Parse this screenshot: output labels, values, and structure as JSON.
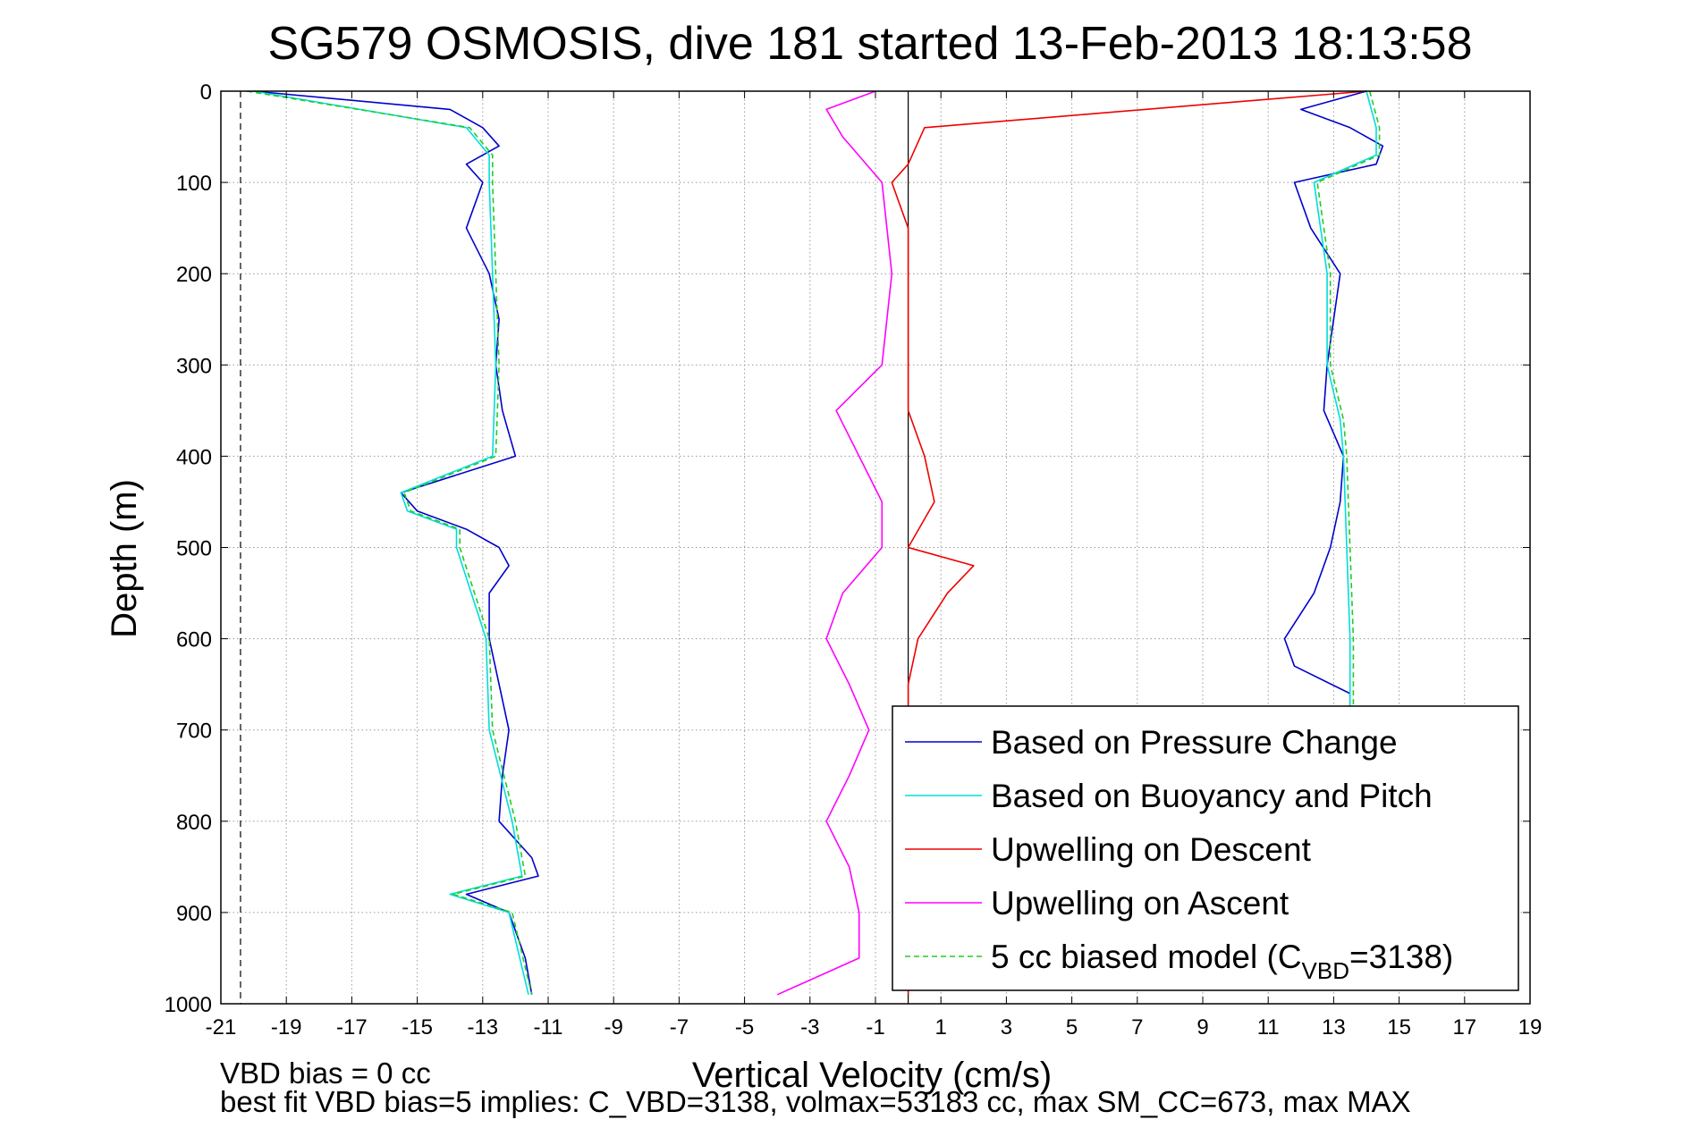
{
  "chart_data": {
    "type": "line",
    "title": "SG579 OSMOSIS, dive 181 started 13-Feb-2013 18:13:58",
    "xlabel": "Vertical Velocity (cm/s)",
    "ylabel": "Depth (m)",
    "xlim": [
      -21,
      19
    ],
    "ylim": [
      1000,
      0
    ],
    "y_reversed": true,
    "x_ticks": [
      -21,
      -19,
      -17,
      -15,
      -13,
      -11,
      -9,
      -7,
      -5,
      -3,
      -1,
      1,
      3,
      5,
      7,
      9,
      11,
      13,
      15,
      17,
      19
    ],
    "y_ticks": [
      0,
      100,
      200,
      300,
      400,
      500,
      600,
      700,
      800,
      900,
      1000
    ],
    "grid": true,
    "reference_lines": [
      {
        "x": 0,
        "style": "solid",
        "color": "#000000"
      },
      {
        "x": -20.4,
        "style": "dashed",
        "color": "#000000"
      }
    ],
    "series": [
      {
        "name": "Based on Pressure Change",
        "color": "#0000cc",
        "style": "solid",
        "profiles": [
          {
            "depth": [
              0,
              20,
              40,
              60,
              80,
              100,
              150,
              200,
              250,
              300,
              350,
              400,
              440,
              460,
              480,
              500,
              520,
              550,
              600,
              650,
              700,
              750,
              800,
              840,
              860,
              880,
              900,
              950,
              990
            ],
            "velocity": [
              -20,
              -14,
              -13,
              -12.5,
              -13.5,
              -13,
              -13.5,
              -12.8,
              -12.5,
              -12.6,
              -12.4,
              -12,
              -15.5,
              -15,
              -13.5,
              -12.5,
              -12.2,
              -12.8,
              -12.8,
              -12.5,
              -12.2,
              -12.4,
              -12.5,
              -11.5,
              -11.3,
              -13.5,
              -12.2,
              -11.7,
              -11.5
            ]
          },
          {
            "depth": [
              0,
              20,
              40,
              60,
              80,
              100,
              150,
              200,
              250,
              300,
              350,
              400,
              450,
              500,
              550,
              600,
              630,
              660,
              700
            ],
            "velocity": [
              14,
              12,
              13.5,
              14.5,
              14.3,
              11.8,
              12.3,
              13.2,
              13,
              12.8,
              12.7,
              13.3,
              13.2,
              12.9,
              12.4,
              11.5,
              11.8,
              13.5,
              13.5
            ]
          }
        ]
      },
      {
        "name": "Based on Buoyancy and Pitch",
        "color": "#00dddd",
        "style": "solid",
        "profiles": [
          {
            "depth": [
              0,
              40,
              70,
              100,
              200,
              300,
              400,
              440,
              460,
              480,
              500,
              600,
              700,
              800,
              860,
              880,
              900,
              990
            ],
            "velocity": [
              -20,
              -13.5,
              -12.8,
              -12.8,
              -12.7,
              -12.6,
              -12.7,
              -15.5,
              -15.3,
              -13.8,
              -13.8,
              -12.9,
              -12.8,
              -12.1,
              -11.8,
              -14,
              -12.2,
              -11.6
            ]
          },
          {
            "depth": [
              0,
              40,
              70,
              100,
              200,
              300,
              360,
              400,
              500,
              600,
              700
            ],
            "velocity": [
              14,
              14.3,
              14.3,
              12.4,
              12.8,
              12.8,
              13.2,
              13.3,
              13.4,
              13.5,
              13.5
            ]
          }
        ]
      },
      {
        "name": "Upwelling on Descent",
        "color": "#ee0000",
        "style": "solid",
        "profiles": [
          {
            "depth": [
              0,
              40,
              80,
              100,
              150,
              200,
              250,
              300,
              350,
              400,
              450,
              500,
              520,
              550,
              600,
              650,
              700,
              750,
              800,
              850,
              900,
              950,
              990
            ],
            "velocity": [
              14,
              0.5,
              0,
              -0.5,
              0,
              0,
              0,
              0,
              0,
              0.5,
              0.8,
              0,
              2,
              1.2,
              0.3,
              0,
              0,
              0,
              -0.2,
              0,
              0,
              0,
              0
            ]
          }
        ]
      },
      {
        "name": "Upwelling on Ascent",
        "color": "#ff00ff",
        "style": "solid",
        "profiles": [
          {
            "depth": [
              0,
              20,
              50,
              100,
              200,
              300,
              350,
              400,
              450,
              500,
              550,
              600,
              650,
              700,
              750,
              800,
              850,
              900,
              950,
              990
            ],
            "velocity": [
              -1,
              -2.5,
              -2,
              -0.8,
              -0.5,
              -0.8,
              -2.2,
              -1.5,
              -0.8,
              -0.8,
              -2,
              -2.5,
              -1.8,
              -1.2,
              -1.8,
              -2.5,
              -1.8,
              -1.5,
              -1.5,
              -4
            ]
          }
        ]
      },
      {
        "name": "5 cc biased model (C_VBD=3138)",
        "color": "#22cc22",
        "style": "dashed",
        "profiles": [
          {
            "depth": [
              0,
              40,
              70,
              100,
              200,
              300,
              400,
              440,
              460,
              480,
              500,
              600,
              700,
              800,
              860,
              880,
              900,
              990
            ],
            "velocity": [
              -20.2,
              -13.4,
              -12.7,
              -12.7,
              -12.6,
              -12.5,
              -12.6,
              -15.4,
              -15.2,
              -13.7,
              -13.7,
              -12.8,
              -12.7,
              -12,
              -11.7,
              -13.9,
              -12.1,
              -11.5
            ]
          },
          {
            "depth": [
              0,
              40,
              70,
              100,
              200,
              300,
              360,
              400,
              500,
              600,
              700
            ],
            "velocity": [
              14.1,
              14.4,
              14.4,
              12.5,
              12.9,
              12.9,
              13.3,
              13.4,
              13.5,
              13.6,
              13.6
            ]
          }
        ]
      }
    ],
    "legend": {
      "placement": "bottom-right",
      "entries": [
        {
          "label": "Based on Pressure Change",
          "color": "#0000cc",
          "style": "solid"
        },
        {
          "label": "Based on Buoyancy and Pitch",
          "color": "#00dddd",
          "style": "solid"
        },
        {
          "label": "Upwelling on Descent",
          "color": "#ee0000",
          "style": "solid"
        },
        {
          "label": "Upwelling on Ascent",
          "color": "#ff00ff",
          "style": "solid"
        },
        {
          "label_prefix": "5 cc biased model (C",
          "label_sub": "VBD",
          "label_suffix": "=3138)",
          "color": "#22cc22",
          "style": "dashed"
        }
      ]
    },
    "annotations": [
      "VBD bias = 0 cc",
      "best fit VBD bias=5 implies: C_VBD=3138, volmax=53183 cc, max SM_CC=673, max MAX"
    ]
  }
}
